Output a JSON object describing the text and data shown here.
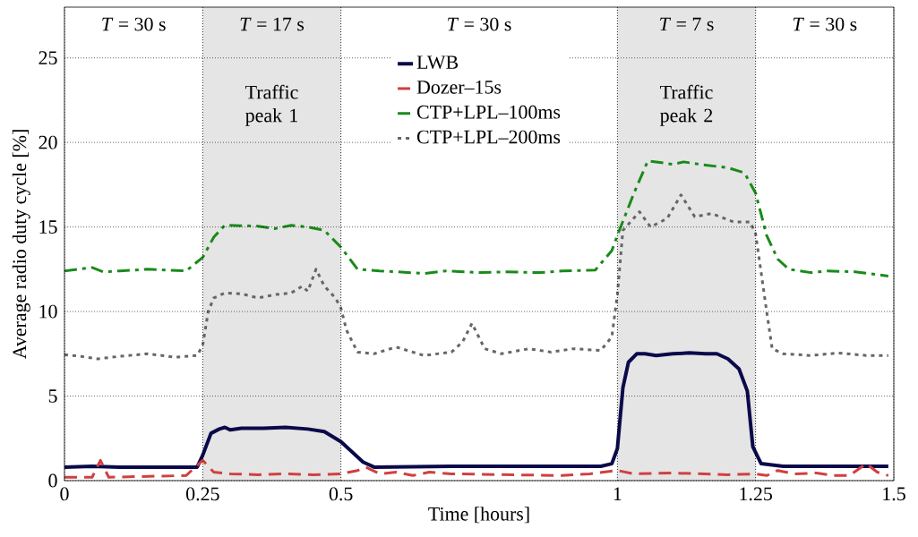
{
  "chart_data": {
    "type": "line",
    "xlabel": "Time [hours]",
    "ylabel": "Average radio duty cycle [%]",
    "xlim": [
      0,
      1.5
    ],
    "ylim": [
      0,
      28
    ],
    "xticks": [
      0,
      0.25,
      0.5,
      1,
      1.25,
      1.5
    ],
    "yticks": [
      0,
      5,
      10,
      15,
      20,
      25
    ],
    "grid": true,
    "legend": "top",
    "bands": [
      {
        "axis": "x",
        "from": 0.25,
        "to": 0.5,
        "label": "Traffic peak 1",
        "color": "#e5e5e5"
      },
      {
        "axis": "x",
        "from": 1,
        "to": 1.25,
        "label": "Traffic peak 2",
        "color": "#e5e5e5"
      }
    ],
    "annotations": [
      "*T* = 30 s",
      "*T* = 17 s",
      "*T* = 30 s",
      "*T* = 7 s",
      "*T* = 30 s"
    ],
    "series": [
      {
        "name": "LWB",
        "color": "#0a0a4a",
        "line_style": "solid",
        "x": [
          0,
          0.05,
          0.1,
          0.24,
          0.25,
          0.265,
          0.28,
          0.29,
          0.3,
          0.32,
          0.36,
          0.4,
          0.44,
          0.47,
          0.5,
          0.54,
          0.56,
          0.7,
          0.97,
          0.99,
          1.0,
          1.01,
          1.02,
          1.035,
          1.05,
          1.07,
          1.1,
          1.13,
          1.16,
          1.18,
          1.2,
          1.22,
          1.235,
          1.245,
          1.26,
          1.3,
          1.49
        ],
        "values": [
          0.8,
          0.85,
          0.8,
          0.8,
          1.5,
          2.8,
          3.05,
          3.15,
          3.0,
          3.1,
          3.1,
          3.15,
          3.05,
          2.9,
          2.3,
          1.1,
          0.8,
          0.85,
          0.85,
          1.0,
          1.9,
          5.5,
          7.0,
          7.5,
          7.5,
          7.4,
          7.5,
          7.55,
          7.5,
          7.5,
          7.2,
          6.6,
          5.3,
          2.0,
          1.0,
          0.85,
          0.85
        ]
      },
      {
        "name": "Dozer–15s",
        "color": "#d04040",
        "line_style": "dashed",
        "x": [
          0,
          0.05,
          0.065,
          0.08,
          0.15,
          0.22,
          0.25,
          0.27,
          0.3,
          0.35,
          0.4,
          0.45,
          0.5,
          0.53,
          0.545,
          0.57,
          0.6,
          0.63,
          0.66,
          0.7,
          0.8,
          0.9,
          0.95,
          1.0,
          1.03,
          1.1,
          1.2,
          1.25,
          1.27,
          1.29,
          1.32,
          1.36,
          1.39,
          1.42,
          1.45,
          1.47,
          1.49
        ],
        "values": [
          0.2,
          0.2,
          1.2,
          0.2,
          0.25,
          0.3,
          1.2,
          0.5,
          0.4,
          0.35,
          0.4,
          0.35,
          0.4,
          0.6,
          0.8,
          0.4,
          0.5,
          0.3,
          0.5,
          0.4,
          0.35,
          0.3,
          0.4,
          0.6,
          0.4,
          0.45,
          0.35,
          0.4,
          0.3,
          0.6,
          0.4,
          0.45,
          0.3,
          0.3,
          1.0,
          0.5,
          0.3
        ]
      },
      {
        "name": "CTP+LPL–100ms",
        "color": "#1a8a1a",
        "line_style": "dashdot",
        "x": [
          0,
          0.05,
          0.07,
          0.1,
          0.15,
          0.22,
          0.25,
          0.27,
          0.29,
          0.35,
          0.38,
          0.41,
          0.44,
          0.47,
          0.5,
          0.53,
          0.57,
          0.6,
          0.65,
          0.69,
          0.75,
          0.8,
          0.86,
          0.9,
          0.96,
          0.99,
          1.0,
          1.03,
          1.055,
          1.08,
          1.1,
          1.12,
          1.15,
          1.2,
          1.23,
          1.25,
          1.27,
          1.29,
          1.31,
          1.35,
          1.38,
          1.43,
          1.49
        ],
        "values": [
          12.4,
          12.6,
          12.35,
          12.4,
          12.5,
          12.4,
          13.2,
          14.4,
          15.1,
          15.05,
          14.9,
          15.1,
          15.0,
          14.8,
          13.8,
          12.5,
          12.4,
          12.35,
          12.25,
          12.4,
          12.3,
          12.35,
          12.3,
          12.4,
          12.45,
          13.6,
          14.5,
          17.0,
          18.9,
          18.8,
          18.7,
          18.85,
          18.7,
          18.5,
          18.2,
          17.0,
          14.5,
          13.1,
          12.5,
          12.3,
          12.4,
          12.35,
          12.1
        ]
      },
      {
        "name": "CTP+LPL–200ms",
        "color": "#666666",
        "line_style": "dotted",
        "x": [
          0,
          0.03,
          0.06,
          0.1,
          0.15,
          0.2,
          0.24,
          0.25,
          0.26,
          0.27,
          0.29,
          0.32,
          0.35,
          0.38,
          0.41,
          0.43,
          0.44,
          0.455,
          0.47,
          0.49,
          0.5,
          0.51,
          0.53,
          0.56,
          0.6,
          0.65,
          0.7,
          0.72,
          0.737,
          0.76,
          0.79,
          0.84,
          0.88,
          0.92,
          0.97,
          0.99,
          1.0,
          1.01,
          1.04,
          1.06,
          1.09,
          1.115,
          1.14,
          1.17,
          1.21,
          1.24,
          1.25,
          1.27,
          1.28,
          1.3,
          1.35,
          1.4,
          1.45,
          1.49
        ],
        "values": [
          7.45,
          7.35,
          7.2,
          7.35,
          7.5,
          7.3,
          7.4,
          8.0,
          10.0,
          10.8,
          11.1,
          11.05,
          10.8,
          11.0,
          11.1,
          11.5,
          11.2,
          12.5,
          11.5,
          10.8,
          10.2,
          8.9,
          7.6,
          7.5,
          7.9,
          7.4,
          7.6,
          8.2,
          9.3,
          7.8,
          7.5,
          7.8,
          7.6,
          7.8,
          7.7,
          8.5,
          11.0,
          14.8,
          15.9,
          15.0,
          15.5,
          16.9,
          15.6,
          15.8,
          15.3,
          15.3,
          14.6,
          10.0,
          7.8,
          7.5,
          7.4,
          7.55,
          7.4,
          7.4
        ]
      }
    ]
  }
}
